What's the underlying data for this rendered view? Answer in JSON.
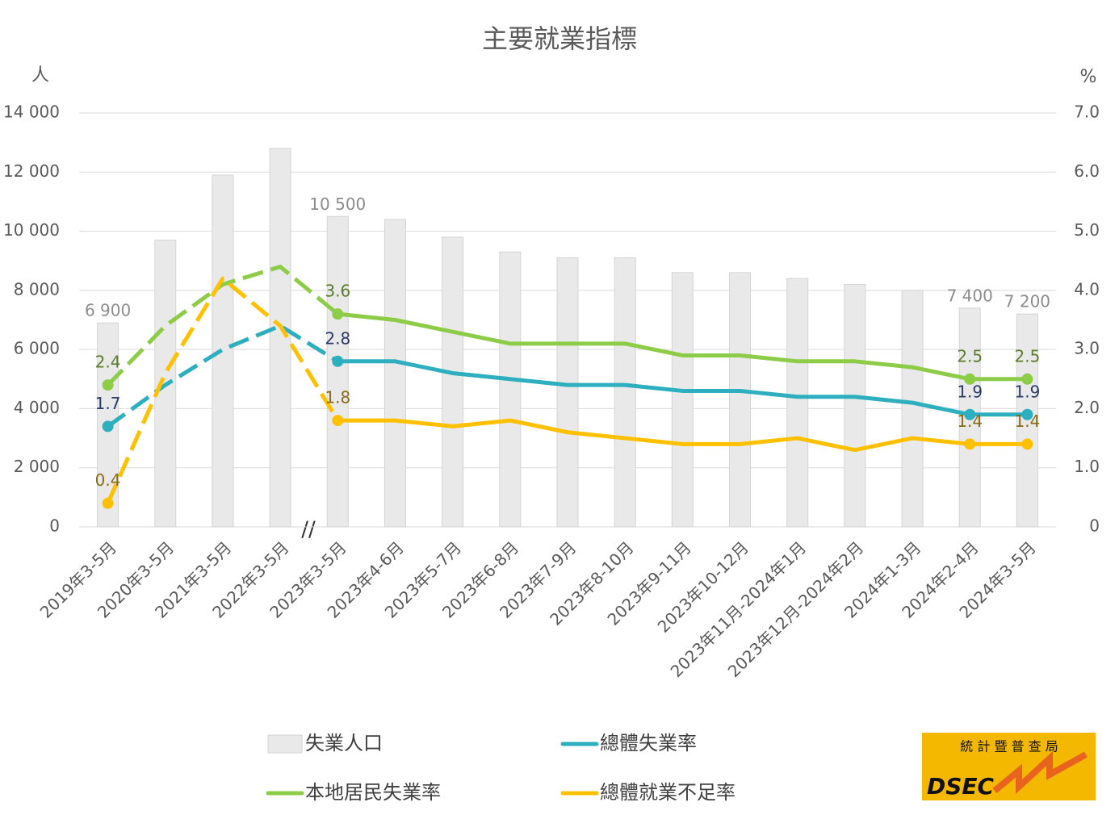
{
  "chart_data": {
    "type": "bar-line",
    "title": "主要就業指標",
    "y_label": "人",
    "y2_label": "%",
    "categories": [
      "2019年3-5月",
      "2020年3-5月",
      "2021年3-5月",
      "2022年3-5月",
      "2023年3-5月",
      "2023年4-6月",
      "2023年5-7月",
      "2023年6-8月",
      "2023年7-9月",
      "2023年8-10月",
      "2023年9-11月",
      "2023年10-12月",
      "2023年11月-2024年1月",
      "2023年12月-2024年2月",
      "2024年1-3月",
      "2024年2-4月",
      "2024年3-5月"
    ],
    "ylim": [
      0,
      14000
    ],
    "yticks": [
      0,
      {
        "value": 2000,
        "label": "2 000"
      },
      {
        "value": 4000,
        "label": "4 000"
      },
      {
        "value": 6000,
        "label": "6 000"
      },
      {
        "value": 8000,
        "label": "8 000"
      },
      {
        "value": 10000,
        "label": "10 000"
      },
      {
        "value": 12000,
        "label": "12 000"
      },
      {
        "value": 14000,
        "label": "14 000"
      }
    ],
    "y2lim": [
      0,
      7
    ],
    "y2ticks": [
      0,
      {
        "value": 1,
        "label": "1.0"
      },
      {
        "value": 2,
        "label": "2.0"
      },
      {
        "value": 3,
        "label": "3.0"
      },
      {
        "value": 4,
        "label": "4.0"
      },
      {
        "value": 5,
        "label": "5.0"
      },
      {
        "value": 6,
        "label": "6.0"
      },
      {
        "value": 7,
        "label": "7.0"
      }
    ],
    "grid": true,
    "series": [
      {
        "name": "失業人口",
        "type": "bar",
        "color": "#e9e9e9",
        "label_color": "#8c8c8c",
        "values": [
          6900,
          9700,
          11900,
          12800,
          10500,
          10400,
          9800,
          9300,
          9100,
          9100,
          8600,
          8600,
          8400,
          8200,
          8000,
          7400,
          7200
        ],
        "value_labels": [
          "6 900",
          null,
          null,
          null,
          "10 500",
          null,
          null,
          null,
          null,
          null,
          null,
          null,
          null,
          null,
          null,
          "7 400",
          "7 200"
        ]
      },
      {
        "name": "總體失業率",
        "type": "line",
        "axis": "y2",
        "color": "#2eafc0",
        "label_color": "#2b3a67",
        "values": [
          1.7,
          2.4,
          3.0,
          3.4,
          2.8,
          2.8,
          2.6,
          2.5,
          2.4,
          2.4,
          2.3,
          2.3,
          2.2,
          2.2,
          2.1,
          1.9,
          1.9
        ],
        "value_labels": [
          "1.7",
          null,
          null,
          null,
          "2.8",
          null,
          null,
          null,
          null,
          null,
          null,
          null,
          null,
          null,
          null,
          "1.9",
          "1.9"
        ]
      },
      {
        "name": "本地居民失業率",
        "type": "line",
        "axis": "y2",
        "color": "#8dcc46",
        "label_color": "#5b7d2b",
        "values": [
          2.4,
          3.4,
          4.1,
          4.4,
          3.6,
          3.5,
          3.3,
          3.1,
          3.1,
          3.1,
          2.9,
          2.9,
          2.8,
          2.8,
          2.7,
          2.5,
          2.5
        ],
        "value_labels": [
          "2.4",
          null,
          null,
          null,
          "3.6",
          null,
          null,
          null,
          null,
          null,
          null,
          null,
          null,
          null,
          null,
          "2.5",
          "2.5"
        ]
      },
      {
        "name": "總體就業不足率",
        "type": "line",
        "axis": "y2",
        "color": "#ffc000",
        "label_color": "#8a6a12",
        "values": [
          0.4,
          2.6,
          4.2,
          3.4,
          1.8,
          1.8,
          1.7,
          1.8,
          1.6,
          1.5,
          1.4,
          1.4,
          1.5,
          1.3,
          1.5,
          1.4,
          1.4
        ],
        "value_labels": [
          "0.4",
          null,
          null,
          null,
          "1.8",
          null,
          null,
          null,
          null,
          null,
          null,
          null,
          null,
          null,
          null,
          "1.4",
          "1.4"
        ]
      }
    ]
  },
  "logo": {
    "name_zh": "統 計 暨 普 查 局",
    "abbr": "DSEC"
  }
}
